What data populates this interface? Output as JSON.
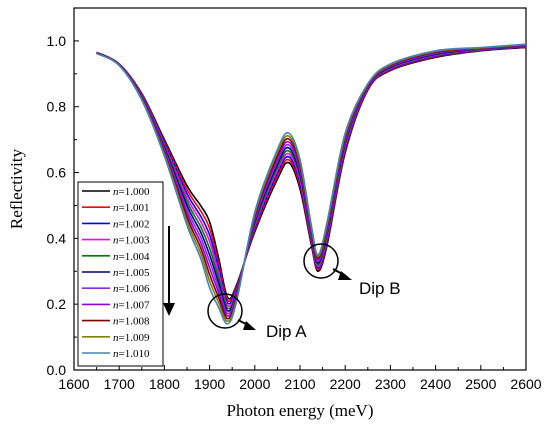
{
  "chart_data": {
    "type": "line",
    "xlabel": "Photon energy (meV)",
    "ylabel": "Reflectivity",
    "xlim": [
      1600,
      2600
    ],
    "ylim": [
      0.0,
      1.1
    ],
    "x_ticks": [
      1600,
      1700,
      1800,
      1900,
      2000,
      2100,
      2200,
      2300,
      2400,
      2500,
      2600
    ],
    "y_ticks": [
      0.0,
      0.2,
      0.4,
      0.6,
      0.8,
      1.0
    ],
    "x_tick_labels": [
      "1600",
      "1700",
      "1800",
      "1900",
      "2000",
      "2100",
      "2200",
      "2300",
      "2400",
      "2500",
      "2600"
    ],
    "y_tick_labels": [
      "0.0",
      "0.2",
      "0.4",
      "0.6",
      "0.8",
      "1.0"
    ],
    "grid": false,
    "legend_position": "bottom-left",
    "legend_prefix": "n",
    "annotations": {
      "dip_a": "Dip A",
      "dip_b": "Dip B"
    },
    "x": [
      1650,
      1700,
      1750,
      1800,
      1850,
      1880,
      1900,
      1920,
      1940,
      1960,
      2000,
      2050,
      2075,
      2100,
      2125,
      2140,
      2160,
      2200,
      2250,
      2300,
      2400,
      2500,
      2600
    ],
    "series": [
      {
        "name": "=1.000",
        "color": "#000000",
        "values": [
          0.965,
          0.93,
          0.84,
          0.7,
          0.56,
          0.5,
          0.45,
          0.34,
          0.22,
          0.26,
          0.42,
          0.58,
          0.63,
          0.55,
          0.38,
          0.3,
          0.38,
          0.66,
          0.85,
          0.91,
          0.95,
          0.97,
          0.98
        ]
      },
      {
        "name": "=1.001",
        "color": "#ff0000",
        "values": [
          0.965,
          0.93,
          0.838,
          0.695,
          0.548,
          0.484,
          0.43,
          0.325,
          0.212,
          0.255,
          0.426,
          0.589,
          0.639,
          0.559,
          0.386,
          0.305,
          0.387,
          0.666,
          0.852,
          0.912,
          0.952,
          0.971,
          0.981
        ]
      },
      {
        "name": "=1.002",
        "color": "#0000ff",
        "values": [
          0.965,
          0.929,
          0.836,
          0.69,
          0.536,
          0.468,
          0.41,
          0.31,
          0.204,
          0.25,
          0.432,
          0.598,
          0.648,
          0.568,
          0.392,
          0.31,
          0.394,
          0.672,
          0.854,
          0.914,
          0.954,
          0.972,
          0.982
        ]
      },
      {
        "name": "=1.003",
        "color": "#ff00ff",
        "values": [
          0.964,
          0.929,
          0.834,
          0.685,
          0.524,
          0.452,
          0.39,
          0.295,
          0.196,
          0.245,
          0.438,
          0.607,
          0.657,
          0.577,
          0.398,
          0.315,
          0.401,
          0.678,
          0.856,
          0.916,
          0.956,
          0.973,
          0.983
        ]
      },
      {
        "name": "=1.004",
        "color": "#008000",
        "values": [
          0.964,
          0.928,
          0.832,
          0.68,
          0.512,
          0.436,
          0.37,
          0.28,
          0.188,
          0.24,
          0.444,
          0.616,
          0.666,
          0.586,
          0.404,
          0.32,
          0.408,
          0.684,
          0.858,
          0.918,
          0.958,
          0.974,
          0.984
        ]
      },
      {
        "name": "=1.005",
        "color": "#000080",
        "values": [
          0.964,
          0.928,
          0.83,
          0.675,
          0.5,
          0.42,
          0.35,
          0.265,
          0.18,
          0.235,
          0.45,
          0.625,
          0.675,
          0.595,
          0.41,
          0.325,
          0.415,
          0.69,
          0.86,
          0.92,
          0.96,
          0.975,
          0.985
        ]
      },
      {
        "name": "=1.006",
        "color": "#8a2be2",
        "values": [
          0.963,
          0.927,
          0.828,
          0.67,
          0.488,
          0.404,
          0.33,
          0.25,
          0.172,
          0.23,
          0.456,
          0.634,
          0.684,
          0.604,
          0.416,
          0.33,
          0.422,
          0.696,
          0.862,
          0.922,
          0.962,
          0.976,
          0.986
        ]
      },
      {
        "name": "=1.007",
        "color": "#9400d3",
        "values": [
          0.963,
          0.927,
          0.826,
          0.665,
          0.476,
          0.388,
          0.31,
          0.235,
          0.164,
          0.225,
          0.462,
          0.643,
          0.693,
          0.613,
          0.422,
          0.335,
          0.429,
          0.702,
          0.864,
          0.924,
          0.964,
          0.977,
          0.987
        ]
      },
      {
        "name": "=1.008",
        "color": "#800000",
        "values": [
          0.963,
          0.926,
          0.824,
          0.66,
          0.464,
          0.372,
          0.29,
          0.22,
          0.156,
          0.22,
          0.468,
          0.652,
          0.702,
          0.622,
          0.428,
          0.34,
          0.436,
          0.708,
          0.866,
          0.926,
          0.966,
          0.978,
          0.988
        ]
      },
      {
        "name": "=1.009",
        "color": "#808000",
        "values": [
          0.962,
          0.926,
          0.822,
          0.655,
          0.452,
          0.356,
          0.27,
          0.205,
          0.148,
          0.215,
          0.474,
          0.661,
          0.711,
          0.631,
          0.434,
          0.345,
          0.443,
          0.714,
          0.868,
          0.928,
          0.968,
          0.979,
          0.989
        ]
      },
      {
        "name": "=1.010",
        "color": "#4682b4",
        "values": [
          0.962,
          0.925,
          0.82,
          0.65,
          0.44,
          0.34,
          0.25,
          0.19,
          0.14,
          0.21,
          0.48,
          0.67,
          0.72,
          0.64,
          0.44,
          0.35,
          0.45,
          0.72,
          0.87,
          0.93,
          0.97,
          0.98,
          0.99
        ]
      }
    ]
  }
}
